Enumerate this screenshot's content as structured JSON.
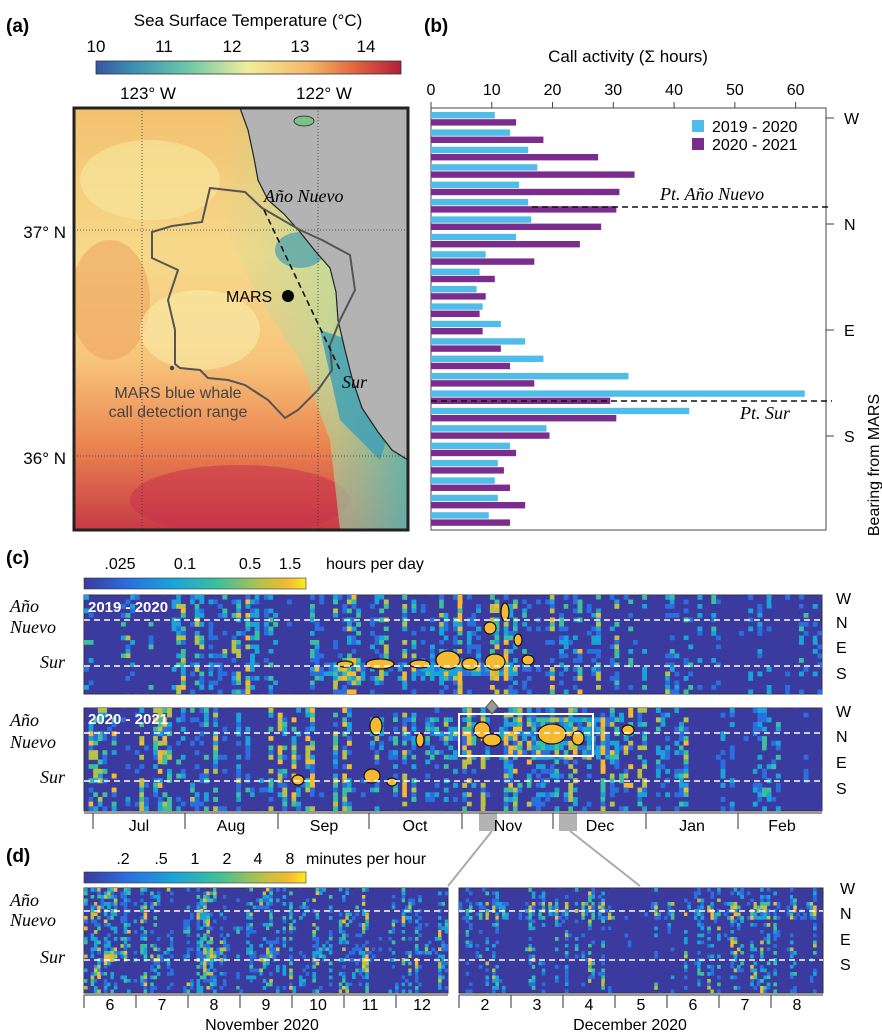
{
  "panel_labels": {
    "a": "(a)",
    "b": "(b)",
    "c": "(c)",
    "d": "(d)"
  },
  "colors": {
    "series_2019": "#4fbde8",
    "series_2020": "#7b2d8e",
    "land": "#b3b3b3",
    "heat_bg": "#3b3a9e",
    "hot": "#f5b932"
  },
  "panel_a": {
    "cbar_title": "Sea Surface Temperature (°C)",
    "cbar_ticks": [
      "10",
      "11",
      "12",
      "13",
      "14"
    ],
    "lon_labels": [
      "123° W",
      "122° W"
    ],
    "lat_labels": [
      "37° N",
      "36° N"
    ],
    "annot_ano": "Año Nuevo",
    "annot_mars": "MARS",
    "annot_sur": "Sur",
    "annot_range": [
      "MARS blue whale",
      "call detection range"
    ]
  },
  "chart_data": [
    {
      "type": "bar",
      "orientation": "horizontal",
      "title": "Call activity (Σ hours)",
      "xlim": [
        0,
        65
      ],
      "xticks": [
        "0",
        "10",
        "20",
        "30",
        "40",
        "50",
        "60"
      ],
      "ylabel": "Bearing from MARS",
      "y_tick_labels": [
        "W",
        "N",
        "E",
        "S"
      ],
      "legend": "top-right",
      "ref_lines": [
        "Pt. Año Nuevo",
        "Pt. Sur"
      ],
      "series": [
        {
          "name": "2019 - 2020",
          "values": [
            10.5,
            13,
            16,
            17.5,
            14.5,
            16,
            16.5,
            14,
            9,
            8,
            7.5,
            8.5,
            11.5,
            15.5,
            18.5,
            32.5,
            61.5,
            42.5,
            19,
            13,
            11,
            10.5,
            11,
            9.5
          ]
        },
        {
          "name": "2020 - 2021",
          "values": [
            14,
            18.5,
            27.5,
            33.5,
            31,
            30.5,
            28,
            24.5,
            17,
            10.5,
            9,
            8,
            8.5,
            11.5,
            13,
            17,
            29.5,
            30.5,
            19.5,
            14,
            12,
            13,
            15.5,
            13
          ]
        }
      ]
    },
    {
      "type": "heatmap",
      "colorbar_title": "hours per day",
      "colorbar_ticks": [
        ".025",
        "0.1",
        "0.5",
        "1.5"
      ],
      "rows": [
        {
          "name": "2019 - 2020"
        },
        {
          "name": "2020 - 2021"
        }
      ],
      "y_tick_labels": [
        "W",
        "N",
        "E",
        "S"
      ],
      "y_left_labels": [
        "Año",
        "Nuevo",
        "Sur"
      ],
      "months": [
        "Jul",
        "Aug",
        "Sep",
        "Oct",
        "Nov",
        "Dec",
        "Jan",
        "Feb"
      ]
    },
    {
      "type": "heatmap",
      "colorbar_title": "minutes per hour",
      "colorbar_ticks": [
        ".2",
        ".5",
        "1",
        "2",
        "4",
        "8"
      ],
      "y_tick_labels": [
        "W",
        "N",
        "E",
        "S"
      ],
      "y_left_labels": [
        "Año",
        "Nuevo",
        "Sur"
      ],
      "panels": [
        {
          "xlabel": "November 2020",
          "days": [
            "6",
            "7",
            "8",
            "9",
            "10",
            "11",
            "12"
          ]
        },
        {
          "xlabel": "December 2020",
          "days": [
            "2",
            "3",
            "4",
            "5",
            "6",
            "7",
            "8"
          ]
        }
      ]
    }
  ]
}
